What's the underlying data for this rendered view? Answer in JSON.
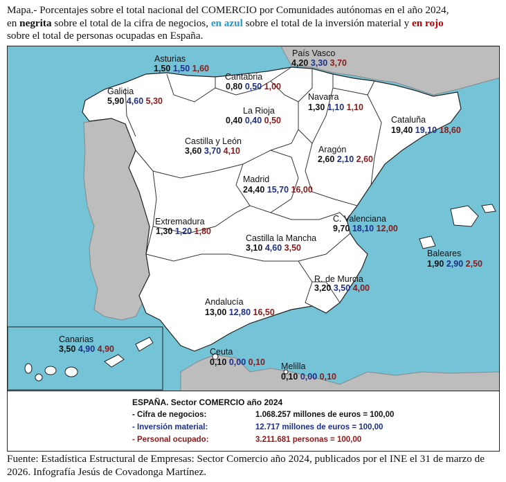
{
  "header": {
    "p1": "Mapa.- Porcentajes sobre el total nacional del COMERCIO por Comunidades autónomas en el año 2024,",
    "p2a": "en ",
    "p2b": "negrita",
    "p2c": " sobre el total de la cifra de negocios, ",
    "p2d": "en azul",
    "p2e": " sobre el total de la inversión material y ",
    "p2f": "en rojo",
    "p3": "sobre el total de personas ocupadas en España."
  },
  "regions": [
    {
      "name": "Asturias",
      "negocios": "1,50",
      "inversion": "1,50",
      "personal": "1,60"
    },
    {
      "name": "País Vasco",
      "negocios": "4,20",
      "inversion": "3,30",
      "personal": "3,70"
    },
    {
      "name": "Cantabria",
      "negocios": "0,80",
      "inversion": "0,50",
      "personal": "1,00"
    },
    {
      "name": "Galicia",
      "negocios": "5,90",
      "inversion": "4,60",
      "personal": "5,30"
    },
    {
      "name": "Navarra",
      "negocios": "1,30",
      "inversion": "1,10",
      "personal": "1,10"
    },
    {
      "name": "La Rioja",
      "negocios": "0,40",
      "inversion": "0,40",
      "personal": "0,50"
    },
    {
      "name": "Cataluña",
      "negocios": "19,40",
      "inversion": "19,10",
      "personal": "18,60"
    },
    {
      "name": "Castilla y León",
      "negocios": "3,60",
      "inversion": "3,70",
      "personal": "4,10"
    },
    {
      "name": "Aragón",
      "negocios": "2,60",
      "inversion": "2,10",
      "personal": "2,60"
    },
    {
      "name": "Madrid",
      "negocios": "24,40",
      "inversion": "15,70",
      "personal": "16,00"
    },
    {
      "name": "Extremadura",
      "negocios": "1,30",
      "inversion": "1,20",
      "personal": "1,80"
    },
    {
      "name": "C. Valenciana",
      "negocios": "9,70",
      "inversion": "18,10",
      "personal": "12,00"
    },
    {
      "name": "Castilla la Mancha",
      "negocios": "3,10",
      "inversion": "4,60",
      "personal": "3,50"
    },
    {
      "name": "Baleares",
      "negocios": "1,90",
      "inversion": "2,90",
      "personal": "2,50"
    },
    {
      "name": "R. de Murcia",
      "negocios": "3,20",
      "inversion": "3,50",
      "personal": "4,00"
    },
    {
      "name": "Andalucía",
      "negocios": "13,00",
      "inversion": "12,80",
      "personal": "16,50"
    },
    {
      "name": "Canarias",
      "negocios": "3,50",
      "inversion": "4,90",
      "personal": "4,90"
    },
    {
      "name": "Ceuta",
      "negocios": "0,10",
      "inversion": "0,00",
      "personal": "0,10"
    },
    {
      "name": "Melilla",
      "negocios": "0,10",
      "inversion": "0,00",
      "personal": "0,10"
    }
  ],
  "legend": {
    "title": "ESPAÑA. Sector COMERCIO año 2024",
    "rows": [
      {
        "label": "- Cifra de negocios:",
        "value": "1.068.257 millones de euros = 100,00",
        "color": "#111111"
      },
      {
        "label": "- Inversión material:",
        "value": "12.717 millones de euros = 100,00",
        "color": "#1c2f8a"
      },
      {
        "label": "- Personal ocupado:",
        "value": "3.211.681 personas = 100,00",
        "color": "#8a1a1a"
      }
    ]
  },
  "colors": {
    "sea": "#74c3d7",
    "land_spain": "#ffffff",
    "land_other": "#bdbdbd",
    "border": "#111111"
  },
  "footer": {
    "a": "Fuente: Estadística Estructural de Empresas: Sector Comercio año 2024, publicados por el INE el 31 de marzo de",
    "b": "2026. Infografía Jesús de Covadonga Martínez."
  }
}
